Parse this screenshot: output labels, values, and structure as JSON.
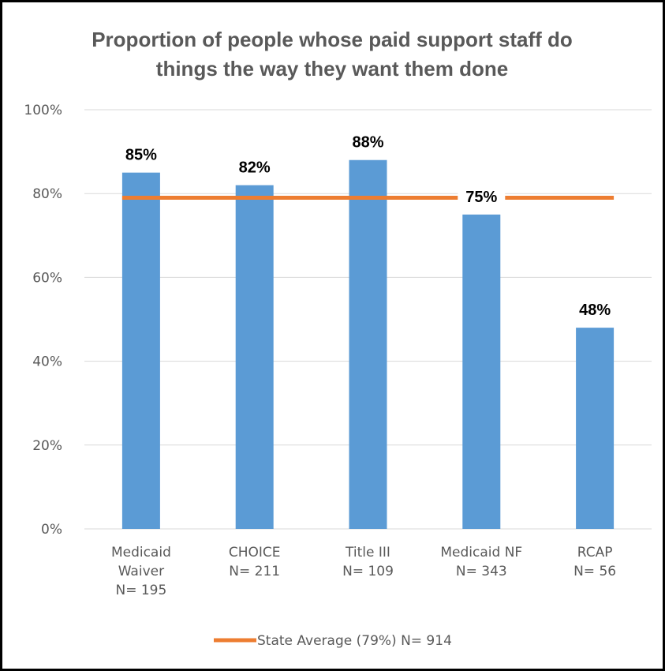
{
  "chart_data": {
    "type": "bar",
    "title_lines": [
      "Proportion of people whose paid support staff do",
      "things the way they want them done"
    ],
    "categories": [
      [
        "Medicaid",
        "Waiver",
        "N= 195"
      ],
      [
        "CHOICE",
        "N= 211"
      ],
      [
        "Title III",
        "N= 109"
      ],
      [
        "Medicaid NF",
        "N= 343"
      ],
      [
        "RCAP",
        "N= 56"
      ]
    ],
    "values": [
      85,
      82,
      88,
      75,
      48
    ],
    "data_labels": [
      "85%",
      "82%",
      "88%",
      "75%",
      "48%"
    ],
    "ylim": [
      0,
      100
    ],
    "yticks": [
      0,
      20,
      40,
      60,
      80,
      100
    ],
    "ytick_labels": [
      "0%",
      "20%",
      "40%",
      "60%",
      "80%",
      "100%"
    ],
    "state_average": {
      "value": 79,
      "legend_label": "State Average (79%) N= 914"
    },
    "grid": true,
    "legend_position": "bottom",
    "colors": {
      "bar": "#5b9bd5",
      "average_line": "#ed7d31",
      "gridline": "#d9d9d9",
      "text": "#595959",
      "data_label": "#000000"
    }
  }
}
